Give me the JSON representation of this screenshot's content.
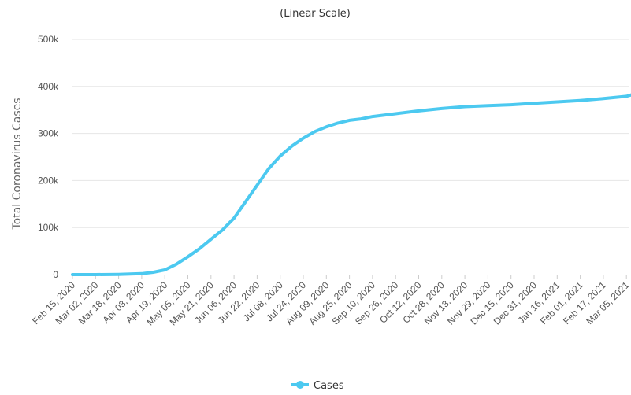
{
  "chart_data": {
    "type": "line",
    "subtitle": "(Linear Scale)",
    "ylabel": "Total Coronavirus Cases",
    "xlabel": "",
    "ylim": [
      0,
      500000
    ],
    "y_ticks": [
      0,
      100000,
      200000,
      300000,
      400000,
      500000
    ],
    "y_tick_labels": [
      "0",
      "100k",
      "200k",
      "300k",
      "400k",
      "500k"
    ],
    "x_tick_labels": [
      "Feb 15, 2020",
      "Mar 02, 2020",
      "Mar 18, 2020",
      "Apr 03, 2020",
      "Apr 19, 2020",
      "May 05, 2020",
      "May 21, 2020",
      "Jun 06, 2020",
      "Jun 22, 2020",
      "Jul 08, 2020",
      "Jul 24, 2020",
      "Aug 09, 2020",
      "Aug 25, 2020",
      "Sep 10, 2020",
      "Sep 26, 2020",
      "Oct 12, 2020",
      "Oct 28, 2020",
      "Nov 13, 2020",
      "Nov 29, 2020",
      "Dec 15, 2020",
      "Dec 31, 2020",
      "Jan 16, 2021",
      "Feb 01, 2021",
      "Feb 17, 2021",
      "Mar 05, 2021"
    ],
    "grid": true,
    "legend_position": "bottom-center",
    "series": [
      {
        "name": "Cases",
        "color": "#4cc9f0",
        "x": [
          "Feb 15, 2020",
          "Mar 02, 2020",
          "Mar 18, 2020",
          "Apr 03, 2020",
          "Apr 11, 2020",
          "Apr 19, 2020",
          "Apr 27, 2020",
          "May 05, 2020",
          "May 13, 2020",
          "May 21, 2020",
          "May 29, 2020",
          "Jun 06, 2020",
          "Jun 14, 2020",
          "Jun 22, 2020",
          "Jun 30, 2020",
          "Jul 08, 2020",
          "Jul 16, 2020",
          "Jul 24, 2020",
          "Aug 01, 2020",
          "Aug 09, 2020",
          "Aug 17, 2020",
          "Aug 25, 2020",
          "Sep 02, 2020",
          "Sep 10, 2020",
          "Sep 26, 2020",
          "Oct 12, 2020",
          "Oct 28, 2020",
          "Nov 13, 2020",
          "Nov 29, 2020",
          "Dec 15, 2020",
          "Dec 31, 2020",
          "Jan 16, 2021",
          "Feb 01, 2021",
          "Feb 17, 2021",
          "Mar 05, 2021",
          "Mar 12, 2021"
        ],
        "values": [
          0,
          0,
          500,
          2000,
          5000,
          10000,
          22000,
          38000,
          55000,
          75000,
          95000,
          120000,
          155000,
          190000,
          225000,
          252000,
          273000,
          290000,
          304000,
          314000,
          322000,
          328000,
          331000,
          336000,
          342000,
          348000,
          353000,
          357000,
          359000,
          361000,
          364000,
          367000,
          370000,
          374000,
          379000,
          382000
        ]
      }
    ]
  }
}
